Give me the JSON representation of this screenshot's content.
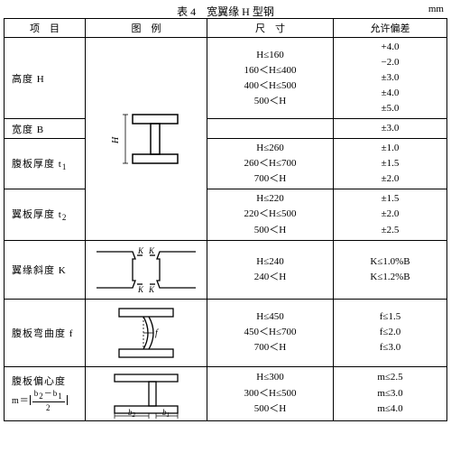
{
  "caption": "表 4　宽翼缘 H 型钢",
  "unit": "mm",
  "headers": {
    "item": "项　目",
    "figure": "图　例",
    "dims": "尺　寸",
    "tol": "允许偏差"
  },
  "rows": [
    {
      "item": "高度 H",
      "dims": [
        "H≤160",
        "160＜H≤400",
        "400＜H≤500",
        "500＜H"
      ],
      "tol": [
        "+4.0\n−2.0",
        "±3.0",
        "±4.0",
        "±5.0"
      ],
      "fig": "H"
    },
    {
      "item": "宽度 B",
      "dims": [
        ""
      ],
      "tol": [
        "±3.0"
      ]
    },
    {
      "item_html": "腹板厚度 t<span class=\"sub\">1</span>",
      "dims": [
        "H≤260",
        "260＜H≤700",
        "700＜H"
      ],
      "tol": [
        "±1.0",
        "±1.5",
        "±2.0"
      ]
    },
    {
      "item_html": "翼板厚度 t<span class=\"sub\">2</span>",
      "dims": [
        "H≤220",
        "220＜H≤500",
        "500＜H"
      ],
      "tol": [
        "±1.5",
        "±2.0",
        "±2.5"
      ]
    },
    {
      "item": "翼缘斜度 K",
      "dims": [
        "H≤240",
        "240＜H"
      ],
      "tol": [
        "K≤1.0%B",
        "K≤1.2%B"
      ],
      "fig": "K"
    },
    {
      "item": "腹板弯曲度 f",
      "dims": [
        "H≤450",
        "450＜H≤700",
        "700＜H"
      ],
      "tol": [
        "f≤1.5",
        "f≤2.0",
        "f≤3.0"
      ],
      "fig": "f"
    },
    {
      "item_html": "腹板偏心度<br><span class=\"formula\">m＝<span class=\"bar\"><span class=\"frac\"><span class=\"n\">b<span class=\"sub\">2</span>－b<span class=\"sub\">1</span></span><span class=\"d\">2</span></span></span></span>",
      "dims": [
        "H≤300",
        "300＜H≤500",
        "500＜H"
      ],
      "tol": [
        "m≤2.5",
        "m≤3.0",
        "m≤4.0"
      ],
      "fig": "m"
    }
  ],
  "style": {
    "stroke": "#000",
    "hatch": "#666"
  }
}
